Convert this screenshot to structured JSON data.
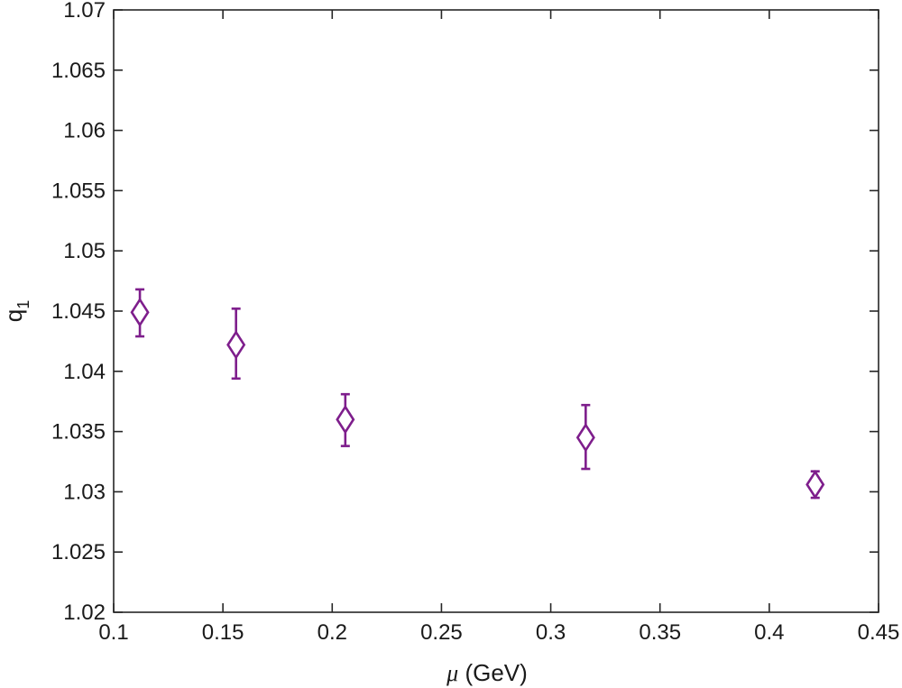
{
  "chart_data": {
    "type": "scatter",
    "xlabel_symbol": "μ",
    "xlabel_unit": " (GeV)",
    "ylabel_main": "q",
    "ylabel_sub": "1",
    "xlim": [
      0.1,
      0.45
    ],
    "ylim": [
      1.02,
      1.07
    ],
    "x_ticks": [
      0.1,
      0.15,
      0.2,
      0.25,
      0.3,
      0.35,
      0.4,
      0.45
    ],
    "x_tick_labels": [
      "0.1",
      "0.15",
      "0.2",
      "0.25",
      "0.3",
      "0.35",
      "0.4",
      "0.45"
    ],
    "y_ticks": [
      1.02,
      1.025,
      1.03,
      1.035,
      1.04,
      1.045,
      1.05,
      1.055,
      1.06,
      1.065,
      1.07
    ],
    "y_tick_labels": [
      "1.02",
      "1.025",
      "1.03",
      "1.035",
      "1.04",
      "1.045",
      "1.05",
      "1.055",
      "1.06",
      "1.065",
      "1.07"
    ],
    "grid": false,
    "marker": "diamond",
    "color": "#7e1e8c",
    "series": [
      {
        "points": [
          {
            "x": 0.112,
            "y": 1.0449,
            "err_low": 1.0429,
            "err_high": 1.0468
          },
          {
            "x": 0.156,
            "y": 1.0422,
            "err_low": 1.0394,
            "err_high": 1.0452
          },
          {
            "x": 0.206,
            "y": 1.036,
            "err_low": 1.0338,
            "err_high": 1.0381
          },
          {
            "x": 0.316,
            "y": 1.0345,
            "err_low": 1.0319,
            "err_high": 1.0372
          },
          {
            "x": 0.421,
            "y": 1.0306,
            "err_low": 1.0295,
            "err_high": 1.0317
          }
        ]
      }
    ]
  }
}
